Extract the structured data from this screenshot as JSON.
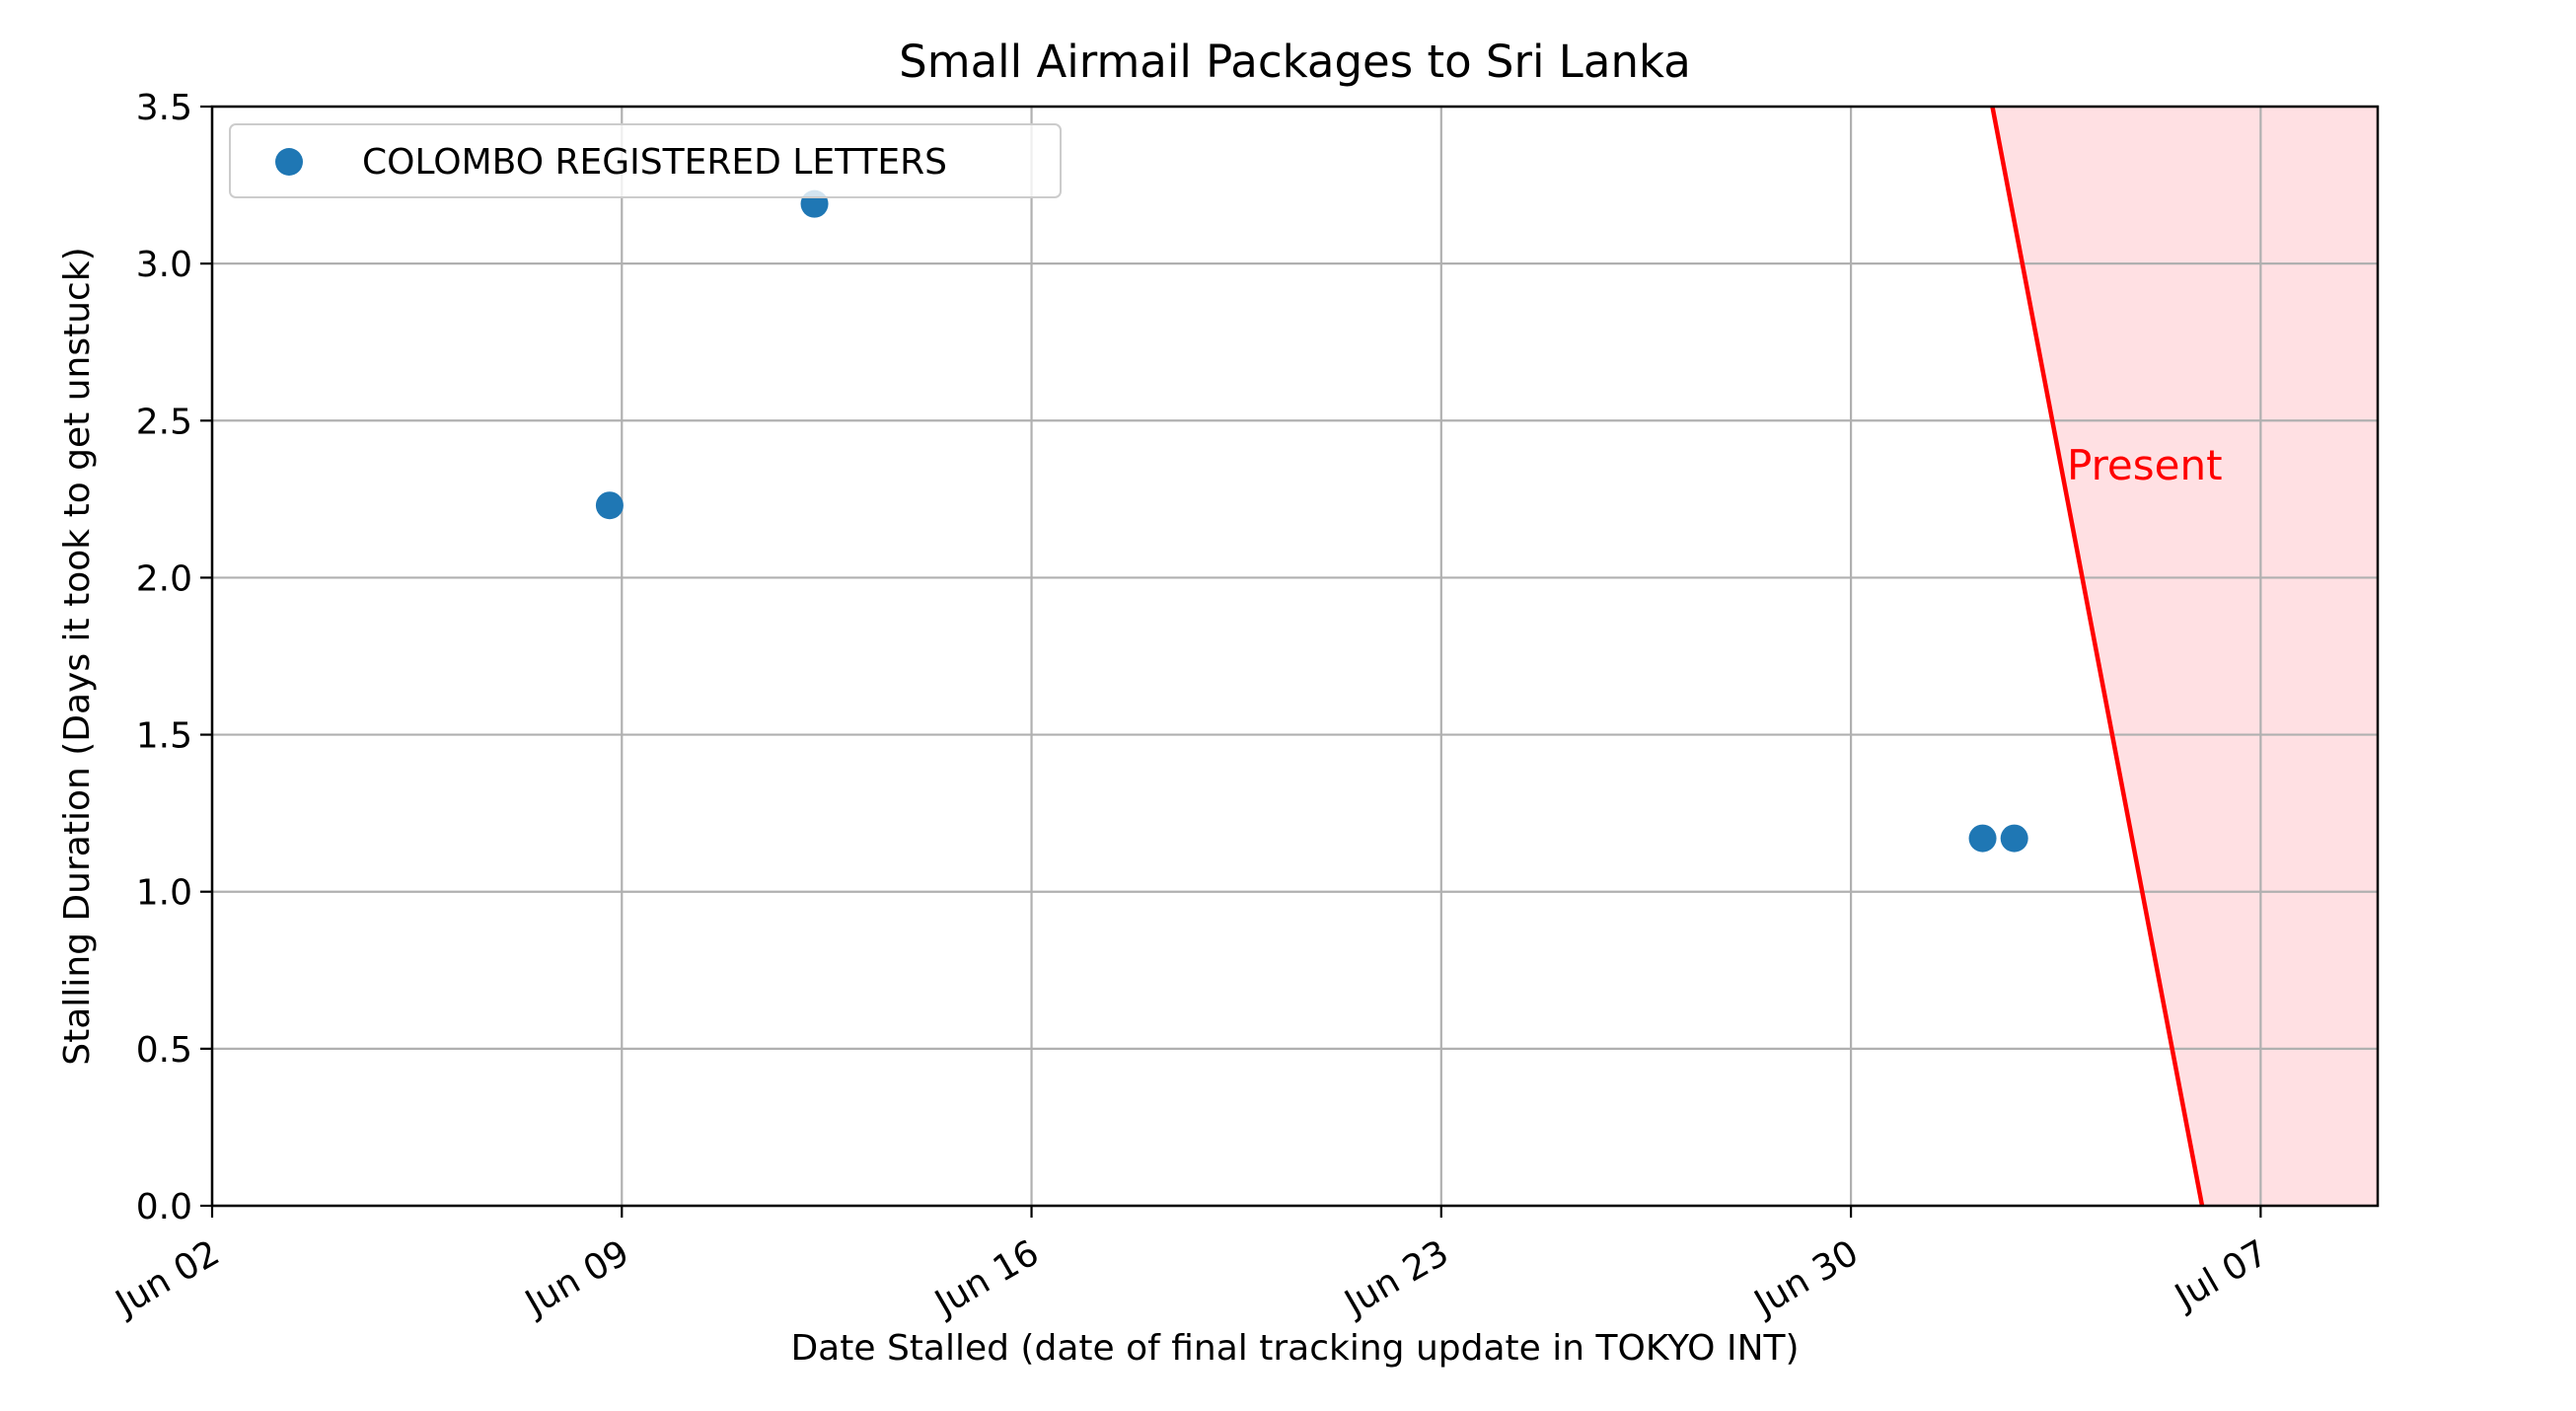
{
  "chart_data": {
    "type": "scatter",
    "title": "Small Airmail Packages to Sri Lanka",
    "xlabel": "Date Stalled (date of final tracking update in TOKYO INT)",
    "ylabel": "Stalling Duration (Days it took to get unstuck)",
    "x_scale": "date",
    "xlim": [
      "2024-06-02",
      "2024-07-09"
    ],
    "ylim": [
      0,
      3.5
    ],
    "x_ticks": [
      {
        "value": "2024-06-02",
        "label": "Jun 02"
      },
      {
        "value": "2024-06-09",
        "label": "Jun 09"
      },
      {
        "value": "2024-06-16",
        "label": "Jun 16"
      },
      {
        "value": "2024-06-23",
        "label": "Jun 23"
      },
      {
        "value": "2024-06-30",
        "label": "Jun 30"
      },
      {
        "value": "2024-07-07",
        "label": "Jul 07"
      }
    ],
    "y_ticks": [
      {
        "value": 0.0,
        "label": "0.0"
      },
      {
        "value": 0.5,
        "label": "0.5"
      },
      {
        "value": 1.0,
        "label": "1.0"
      },
      {
        "value": 1.5,
        "label": "1.5"
      },
      {
        "value": 2.0,
        "label": "2.0"
      },
      {
        "value": 2.5,
        "label": "2.5"
      },
      {
        "value": 3.0,
        "label": "3.0"
      },
      {
        "value": 3.5,
        "label": "3.5"
      }
    ],
    "grid": true,
    "legend": {
      "position": "upper left",
      "entries": [
        "COLOMBO REGISTERED LETTERS"
      ]
    },
    "series": [
      {
        "name": "COLOMBO REGISTERED LETTERS",
        "color": "#1f77b4",
        "points": [
          {
            "x": "2024-06-08T19:00",
            "y": 2.23
          },
          {
            "x": "2024-06-12T07:00",
            "y": 3.19
          },
          {
            "x": "2024-07-02T06:00",
            "y": 1.17
          },
          {
            "x": "2024-07-02T19:00",
            "y": 1.17
          }
        ]
      }
    ],
    "present_region": {
      "label": "Present",
      "line_color": "#ff0000",
      "fill_color": "#ffe0e3",
      "line_top": {
        "x": "2024-07-02T10:00",
        "y": 3.5
      },
      "line_bottom": {
        "x": "2024-07-06T00:00",
        "y": 0.0
      }
    }
  }
}
